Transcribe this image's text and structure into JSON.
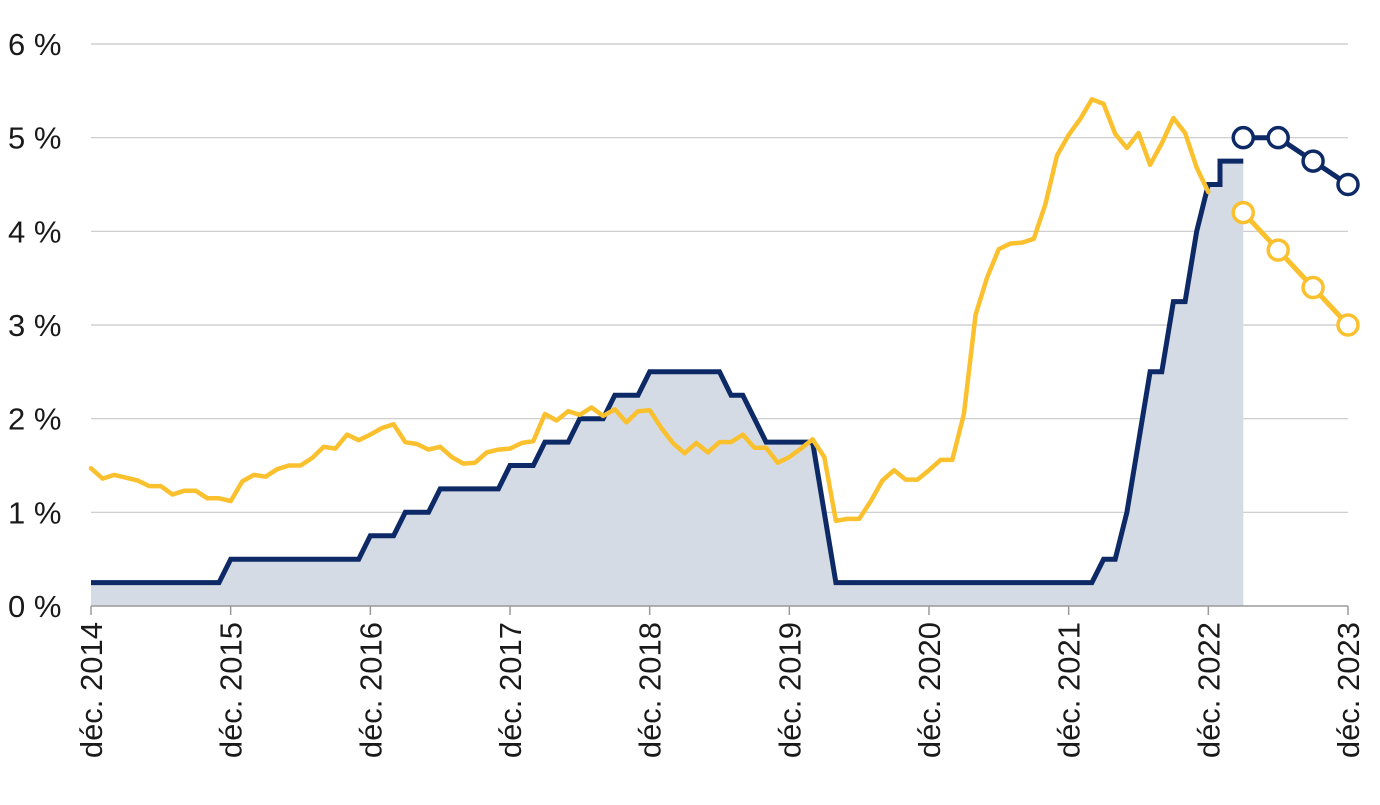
{
  "chart_data": {
    "type": "line",
    "title": "",
    "xlabel": "",
    "ylabel": "",
    "y_unit": "%",
    "ylim": [
      0,
      6
    ],
    "xlim": [
      "2014-12",
      "2023-12"
    ],
    "grid": true,
    "legend": "none",
    "y_ticks": [
      {
        "value": 0,
        "label": "0 %"
      },
      {
        "value": 1,
        "label": "1 %"
      },
      {
        "value": 2,
        "label": "2 %"
      },
      {
        "value": 3,
        "label": "3 %"
      },
      {
        "value": 4,
        "label": "4 %"
      },
      {
        "value": 5,
        "label": "5 %"
      },
      {
        "value": 6,
        "label": "6 %"
      }
    ],
    "x_ticks": [
      {
        "date": "2014-12",
        "label": "déc. 2014"
      },
      {
        "date": "2015-12",
        "label": "déc. 2015"
      },
      {
        "date": "2016-12",
        "label": "déc. 2016"
      },
      {
        "date": "2017-12",
        "label": "déc. 2017"
      },
      {
        "date": "2018-12",
        "label": "déc. 2018"
      },
      {
        "date": "2019-12",
        "label": "déc. 2019"
      },
      {
        "date": "2020-12",
        "label": "déc. 2020"
      },
      {
        "date": "2021-12",
        "label": "déc. 2021"
      },
      {
        "date": "2022-12",
        "label": "déc. 2022"
      },
      {
        "date": "2023-12",
        "label": "déc. 2023"
      }
    ],
    "series": [
      {
        "style": "area-step",
        "color": "#0d2a66",
        "fill": "#d5dbe5",
        "points": [
          [
            "2014-12",
            0.25
          ],
          [
            "2015-11",
            0.25
          ],
          [
            "2015-12",
            0.5
          ],
          [
            "2016-11",
            0.5
          ],
          [
            "2016-12",
            0.75
          ],
          [
            "2017-02",
            0.75
          ],
          [
            "2017-03",
            1.0
          ],
          [
            "2017-05",
            1.0
          ],
          [
            "2017-06",
            1.25
          ],
          [
            "2017-11",
            1.25
          ],
          [
            "2017-12",
            1.5
          ],
          [
            "2018-02",
            1.5
          ],
          [
            "2018-03",
            1.75
          ],
          [
            "2018-05",
            1.75
          ],
          [
            "2018-06",
            2.0
          ],
          [
            "2018-08",
            2.0
          ],
          [
            "2018-09",
            2.25
          ],
          [
            "2018-11",
            2.25
          ],
          [
            "2018-12",
            2.5
          ],
          [
            "2019-06",
            2.5
          ],
          [
            "2019-07",
            2.25
          ],
          [
            "2019-08",
            2.25
          ],
          [
            "2019-10",
            1.75
          ],
          [
            "2020-02",
            1.75
          ],
          [
            "2020-04",
            0.25
          ],
          [
            "2022-02",
            0.25
          ],
          [
            "2022-03",
            0.5
          ],
          [
            "2022-04",
            0.5
          ],
          [
            "2022-05",
            1.0
          ],
          [
            "2022-06",
            1.75
          ],
          [
            "2022-07",
            2.5
          ],
          [
            "2022-08",
            2.5
          ],
          [
            "2022-09",
            3.25
          ],
          [
            "2022-10",
            3.25
          ],
          [
            "2022-11",
            4.0
          ],
          [
            "2022-12",
            4.5
          ],
          [
            "2023-01",
            4.5
          ],
          [
            "2023-01",
            4.75
          ],
          [
            "2023-03",
            4.75
          ]
        ]
      },
      {
        "style": "line",
        "color": "#fbc02d",
        "points": [
          [
            "2014-12",
            1.47
          ],
          [
            "2015-01",
            1.36
          ],
          [
            "2015-02",
            1.4
          ],
          [
            "2015-03",
            1.37
          ],
          [
            "2015-04",
            1.34
          ],
          [
            "2015-05",
            1.28
          ],
          [
            "2015-06",
            1.28
          ],
          [
            "2015-07",
            1.19
          ],
          [
            "2015-08",
            1.23
          ],
          [
            "2015-09",
            1.23
          ],
          [
            "2015-10",
            1.15
          ],
          [
            "2015-11",
            1.15
          ],
          [
            "2015-12",
            1.12
          ],
          [
            "2016-01",
            1.33
          ],
          [
            "2016-02",
            1.4
          ],
          [
            "2016-03",
            1.38
          ],
          [
            "2016-04",
            1.46
          ],
          [
            "2016-05",
            1.5
          ],
          [
            "2016-06",
            1.5
          ],
          [
            "2016-07",
            1.58
          ],
          [
            "2016-08",
            1.7
          ],
          [
            "2016-09",
            1.68
          ],
          [
            "2016-10",
            1.83
          ],
          [
            "2016-11",
            1.77
          ],
          [
            "2016-12",
            1.83
          ],
          [
            "2017-01",
            1.9
          ],
          [
            "2017-02",
            1.94
          ],
          [
            "2017-03",
            1.75
          ],
          [
            "2017-04",
            1.73
          ],
          [
            "2017-05",
            1.67
          ],
          [
            "2017-06",
            1.7
          ],
          [
            "2017-07",
            1.59
          ],
          [
            "2017-08",
            1.52
          ],
          [
            "2017-09",
            1.53
          ],
          [
            "2017-10",
            1.64
          ],
          [
            "2017-11",
            1.67
          ],
          [
            "2017-12",
            1.68
          ],
          [
            "2018-01",
            1.74
          ],
          [
            "2018-02",
            1.76
          ],
          [
            "2018-03",
            2.05
          ],
          [
            "2018-04",
            1.98
          ],
          [
            "2018-05",
            2.08
          ],
          [
            "2018-06",
            2.04
          ],
          [
            "2018-07",
            2.12
          ],
          [
            "2018-08",
            2.03
          ],
          [
            "2018-09",
            2.1
          ],
          [
            "2018-10",
            1.96
          ],
          [
            "2018-11",
            2.08
          ],
          [
            "2018-12",
            2.09
          ],
          [
            "2019-01",
            1.9
          ],
          [
            "2019-02",
            1.74
          ],
          [
            "2019-03",
            1.63
          ],
          [
            "2019-04",
            1.74
          ],
          [
            "2019-05",
            1.64
          ],
          [
            "2019-06",
            1.75
          ],
          [
            "2019-07",
            1.75
          ],
          [
            "2019-08",
            1.83
          ],
          [
            "2019-09",
            1.69
          ],
          [
            "2019-10",
            1.69
          ],
          [
            "2019-11",
            1.53
          ],
          [
            "2019-12",
            1.59
          ],
          [
            "2020-01",
            1.68
          ],
          [
            "2020-02",
            1.78
          ],
          [
            "2020-03",
            1.59
          ],
          [
            "2020-04",
            0.91
          ],
          [
            "2020-05",
            0.93
          ],
          [
            "2020-06",
            0.93
          ],
          [
            "2020-07",
            1.12
          ],
          [
            "2020-08",
            1.34
          ],
          [
            "2020-09",
            1.45
          ],
          [
            "2020-10",
            1.35
          ],
          [
            "2020-11",
            1.35
          ],
          [
            "2020-12",
            1.45
          ],
          [
            "2021-01",
            1.56
          ],
          [
            "2021-02",
            1.56
          ],
          [
            "2021-03",
            2.05
          ],
          [
            "2021-04",
            3.11
          ],
          [
            "2021-05",
            3.51
          ],
          [
            "2021-06",
            3.81
          ],
          [
            "2021-07",
            3.87
          ],
          [
            "2021-08",
            3.88
          ],
          [
            "2021-09",
            3.92
          ],
          [
            "2021-10",
            4.29
          ],
          [
            "2021-11",
            4.81
          ],
          [
            "2021-12",
            5.03
          ],
          [
            "2022-01",
            5.2
          ],
          [
            "2022-02",
            5.41
          ],
          [
            "2022-03",
            5.36
          ],
          [
            "2022-04",
            5.04
          ],
          [
            "2022-05",
            4.89
          ],
          [
            "2022-06",
            5.05
          ],
          [
            "2022-07",
            4.71
          ],
          [
            "2022-08",
            4.94
          ],
          [
            "2022-09",
            5.21
          ],
          [
            "2022-10",
            5.05
          ],
          [
            "2022-11",
            4.68
          ],
          [
            "2022-12",
            4.42
          ]
        ]
      },
      {
        "style": "line-markers",
        "color": "#0d2a66",
        "points": [
          [
            "2023-03",
            5.0
          ],
          [
            "2023-06",
            5.0
          ],
          [
            "2023-09",
            4.75
          ],
          [
            "2023-12",
            4.5
          ]
        ]
      },
      {
        "style": "line-markers",
        "color": "#fbc02d",
        "points": [
          [
            "2023-03",
            4.2
          ],
          [
            "2023-06",
            3.8
          ],
          [
            "2023-09",
            3.4
          ],
          [
            "2023-12",
            3.0
          ]
        ]
      }
    ]
  }
}
